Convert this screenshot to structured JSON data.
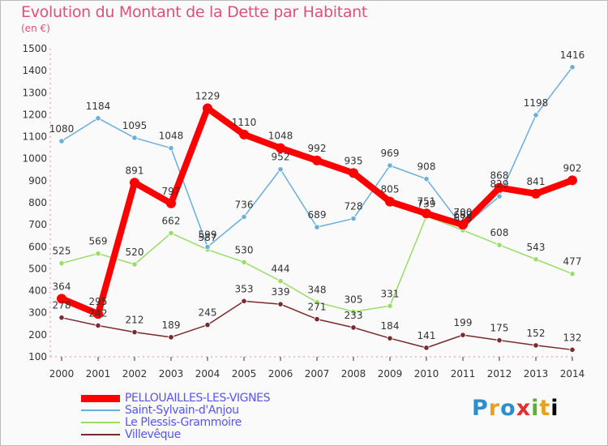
{
  "title": "Evolution du Montant de la Dette par Habitant",
  "unit_label": "(en €)",
  "logo_text": "Proxiti",
  "chart_data": {
    "type": "line",
    "title": "Evolution du Montant de la Dette par Habitant",
    "ylabel": "(en €)",
    "xlabel": "",
    "ylim": [
      100,
      1500
    ],
    "yticks": [
      100,
      200,
      300,
      400,
      500,
      600,
      700,
      800,
      900,
      1000,
      1100,
      1200,
      1300,
      1400,
      1500
    ],
    "categories": [
      "2000",
      "2001",
      "2002",
      "2003",
      "2004",
      "2005",
      "2006",
      "2007",
      "2008",
      "2009",
      "2010",
      "2011",
      "2012",
      "2013",
      "2014"
    ],
    "grid": false,
    "legend_position": "bottom-left",
    "series": [
      {
        "name": "PELLOUAILLES-LES-VIGNES",
        "color": "#ff0000",
        "values": [
          364,
          295,
          891,
          797,
          1229,
          1110,
          1048,
          992,
          935,
          805,
          751,
          700,
          868,
          841,
          902
        ],
        "labels": [
          "364",
          "295",
          "891",
          "797",
          "1229",
          "1110",
          "1048",
          "992",
          "935",
          "805",
          "751",
          "700",
          "868",
          "841",
          "902"
        ]
      },
      {
        "name": "Saint-Sylvain-d'Anjou",
        "color": "#6aaedc",
        "values": [
          1080,
          1184,
          1095,
          1048,
          599,
          736,
          952,
          689,
          728,
          969,
          908,
          689,
          829,
          1198,
          1416
        ],
        "labels": [
          "1080",
          "1184",
          "1095",
          "1048",
          "599",
          "736",
          "952",
          "689",
          "728",
          "969",
          "908",
          "689",
          "829",
          "1198",
          "1416"
        ]
      },
      {
        "name": "Le Plessis-Grammoire",
        "color": "#99dd66",
        "values": [
          525,
          569,
          520,
          662,
          587,
          530,
          444,
          348,
          305,
          331,
          739,
          675,
          608,
          543,
          477
        ],
        "labels": [
          "525",
          "569",
          "520",
          "662",
          "587",
          "530",
          "444",
          "348",
          "305",
          "331",
          "739",
          "675",
          "608",
          "543",
          "477"
        ]
      },
      {
        "name": "Villevêque",
        "color": "#7a2a2a",
        "values": [
          278,
          242,
          212,
          189,
          245,
          353,
          339,
          271,
          233,
          184,
          141,
          199,
          175,
          152,
          132
        ],
        "labels": [
          "278",
          "242",
          "212",
          "189",
          "245",
          "353",
          "339",
          "271",
          "233",
          "184",
          "141",
          "199",
          "175",
          "152",
          "132"
        ]
      }
    ]
  }
}
